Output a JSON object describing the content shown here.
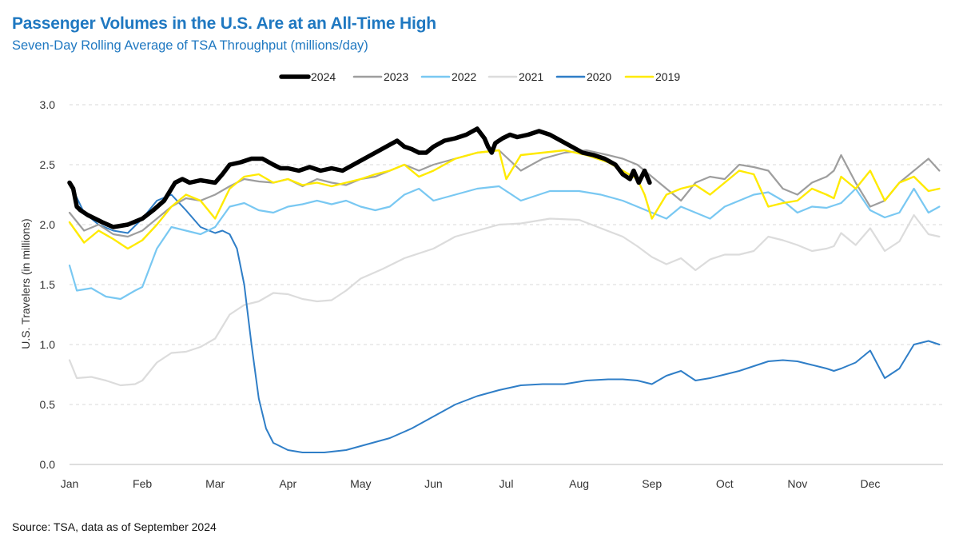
{
  "title": "Passenger Volumes in the U.S. Are at an All-Time High",
  "subtitle": "Seven-Day Rolling Average of TSA Throughput (millions/day)",
  "source": "Source: TSA, data as of September 2024",
  "colors": {
    "2024": "#000000",
    "2023": "#9e9e9e",
    "2022": "#79c8f2",
    "2021": "#dcdcdc",
    "2020": "#2f7ec7",
    "2019": "#ffea00"
  },
  "chart_data": {
    "type": "line",
    "ylabel": "U.S. Travelers (in millions)",
    "ylim": [
      0,
      3.0
    ],
    "yticks": [
      0.0,
      0.5,
      1.0,
      1.5,
      2.0,
      2.5,
      3.0
    ],
    "ytick_labels": [
      "0.0",
      "0.5",
      "1.0",
      "1.5",
      "2.0",
      "2.5",
      "3.0"
    ],
    "xlim": [
      0,
      12
    ],
    "xticks": [
      0,
      1,
      2,
      3,
      4,
      5,
      6,
      7,
      8,
      9,
      10,
      11
    ],
    "xtick_labels": [
      "Jan",
      "Feb",
      "Mar",
      "Apr",
      "May",
      "Jun",
      "Jul",
      "Aug",
      "Sep",
      "Oct",
      "Nov",
      "Dec"
    ],
    "grid": true,
    "legend_position": "top-center",
    "series": [
      {
        "name": "2021",
        "x": [
          0,
          0.1,
          0.3,
          0.5,
          0.7,
          0.9,
          1.0,
          1.2,
          1.4,
          1.6,
          1.8,
          2.0,
          2.2,
          2.4,
          2.6,
          2.8,
          3.0,
          3.2,
          3.4,
          3.6,
          3.8,
          4.0,
          4.3,
          4.6,
          5.0,
          5.3,
          5.6,
          5.9,
          6.2,
          6.6,
          7.0,
          7.3,
          7.6,
          7.8,
          8.0,
          8.2,
          8.4,
          8.6,
          8.8,
          9.0,
          9.2,
          9.4,
          9.6,
          9.8,
          10.0,
          10.2,
          10.4,
          10.5,
          10.6,
          10.8,
          11.0,
          11.2,
          11.4,
          11.6,
          11.8,
          11.95
        ],
        "values": [
          0.87,
          0.72,
          0.73,
          0.7,
          0.66,
          0.67,
          0.7,
          0.85,
          0.93,
          0.94,
          0.98,
          1.05,
          1.25,
          1.33,
          1.36,
          1.43,
          1.42,
          1.38,
          1.36,
          1.37,
          1.45,
          1.55,
          1.63,
          1.72,
          1.8,
          1.9,
          1.95,
          2.0,
          2.01,
          2.05,
          2.04,
          1.97,
          1.9,
          1.82,
          1.73,
          1.67,
          1.72,
          1.62,
          1.71,
          1.75,
          1.75,
          1.78,
          1.9,
          1.87,
          1.83,
          1.78,
          1.8,
          1.82,
          1.93,
          1.83,
          1.97,
          1.78,
          1.86,
          2.08,
          1.92,
          1.9
        ]
      },
      {
        "name": "2020",
        "x": [
          0,
          0.2,
          0.4,
          0.6,
          0.8,
          1.0,
          1.2,
          1.4,
          1.6,
          1.8,
          2.0,
          2.1,
          2.2,
          2.3,
          2.4,
          2.5,
          2.6,
          2.7,
          2.8,
          3.0,
          3.2,
          3.5,
          3.8,
          4.1,
          4.4,
          4.7,
          5.0,
          5.3,
          5.6,
          5.9,
          6.2,
          6.5,
          6.8,
          7.1,
          7.4,
          7.6,
          7.8,
          8.0,
          8.2,
          8.4,
          8.6,
          8.8,
          9.0,
          9.2,
          9.4,
          9.6,
          9.8,
          10.0,
          10.2,
          10.4,
          10.5,
          10.6,
          10.8,
          11.0,
          11.2,
          11.4,
          11.6,
          11.8,
          11.95
        ],
        "values": [
          2.35,
          2.1,
          2.0,
          1.95,
          1.93,
          2.05,
          2.2,
          2.25,
          2.12,
          1.98,
          1.93,
          1.95,
          1.92,
          1.8,
          1.5,
          1.0,
          0.55,
          0.3,
          0.18,
          0.12,
          0.1,
          0.1,
          0.12,
          0.17,
          0.22,
          0.3,
          0.4,
          0.5,
          0.57,
          0.62,
          0.66,
          0.67,
          0.67,
          0.7,
          0.71,
          0.71,
          0.7,
          0.67,
          0.74,
          0.78,
          0.7,
          0.72,
          0.75,
          0.78,
          0.82,
          0.86,
          0.87,
          0.86,
          0.83,
          0.8,
          0.78,
          0.8,
          0.85,
          0.95,
          0.72,
          0.8,
          1.0,
          1.03,
          1.0
        ]
      },
      {
        "name": "2022",
        "x": [
          0,
          0.1,
          0.3,
          0.5,
          0.7,
          0.9,
          1.0,
          1.2,
          1.4,
          1.6,
          1.8,
          2.0,
          2.2,
          2.4,
          2.6,
          2.8,
          3.0,
          3.2,
          3.4,
          3.6,
          3.8,
          4.0,
          4.2,
          4.4,
          4.6,
          4.8,
          5.0,
          5.3,
          5.6,
          5.9,
          6.2,
          6.6,
          7.0,
          7.3,
          7.6,
          7.8,
          8.0,
          8.2,
          8.4,
          8.6,
          8.8,
          9.0,
          9.2,
          9.4,
          9.6,
          9.8,
          10.0,
          10.2,
          10.4,
          10.6,
          10.8,
          11.0,
          11.2,
          11.4,
          11.6,
          11.8,
          11.95
        ],
        "values": [
          1.66,
          1.45,
          1.47,
          1.4,
          1.38,
          1.45,
          1.48,
          1.8,
          1.98,
          1.95,
          1.92,
          1.98,
          2.15,
          2.18,
          2.12,
          2.1,
          2.15,
          2.17,
          2.2,
          2.17,
          2.2,
          2.15,
          2.12,
          2.15,
          2.25,
          2.3,
          2.2,
          2.25,
          2.3,
          2.32,
          2.2,
          2.28,
          2.28,
          2.25,
          2.2,
          2.15,
          2.1,
          2.05,
          2.15,
          2.1,
          2.05,
          2.15,
          2.2,
          2.25,
          2.27,
          2.2,
          2.1,
          2.15,
          2.14,
          2.18,
          2.3,
          2.12,
          2.06,
          2.1,
          2.3,
          2.1,
          2.15
        ]
      },
      {
        "name": "2023",
        "x": [
          0,
          0.2,
          0.4,
          0.6,
          0.8,
          1.0,
          1.2,
          1.4,
          1.6,
          1.8,
          2.0,
          2.2,
          2.4,
          2.6,
          2.8,
          3.0,
          3.2,
          3.4,
          3.6,
          3.8,
          4.0,
          4.2,
          4.4,
          4.6,
          4.8,
          5.0,
          5.3,
          5.6,
          5.9,
          6.2,
          6.5,
          6.8,
          7.1,
          7.4,
          7.6,
          7.8,
          8.0,
          8.2,
          8.4,
          8.6,
          8.8,
          9.0,
          9.2,
          9.4,
          9.6,
          9.8,
          10.0,
          10.2,
          10.4,
          10.5,
          10.6,
          10.8,
          11.0,
          11.2,
          11.4,
          11.6,
          11.8,
          11.95
        ],
        "values": [
          2.1,
          1.95,
          2.0,
          1.92,
          1.9,
          1.95,
          2.05,
          2.15,
          2.22,
          2.2,
          2.25,
          2.32,
          2.38,
          2.36,
          2.35,
          2.38,
          2.32,
          2.38,
          2.35,
          2.33,
          2.38,
          2.4,
          2.45,
          2.5,
          2.45,
          2.5,
          2.55,
          2.6,
          2.62,
          2.45,
          2.55,
          2.6,
          2.62,
          2.58,
          2.55,
          2.5,
          2.4,
          2.3,
          2.2,
          2.35,
          2.4,
          2.38,
          2.5,
          2.48,
          2.45,
          2.3,
          2.25,
          2.35,
          2.4,
          2.45,
          2.58,
          2.35,
          2.15,
          2.2,
          2.35,
          2.45,
          2.55,
          2.45
        ]
      },
      {
        "name": "2019",
        "x": [
          0,
          0.2,
          0.4,
          0.6,
          0.8,
          1.0,
          1.2,
          1.4,
          1.6,
          1.8,
          2.0,
          2.2,
          2.4,
          2.6,
          2.8,
          3.0,
          3.2,
          3.4,
          3.6,
          3.8,
          4.0,
          4.2,
          4.4,
          4.6,
          4.8,
          5.0,
          5.3,
          5.6,
          5.9,
          6.0,
          6.2,
          6.5,
          6.8,
          7.1,
          7.4,
          7.6,
          7.8,
          7.9,
          8.0,
          8.2,
          8.4,
          8.6,
          8.8,
          9.0,
          9.2,
          9.4,
          9.6,
          9.8,
          10.0,
          10.2,
          10.4,
          10.5,
          10.6,
          10.8,
          11.0,
          11.2,
          11.4,
          11.6,
          11.8,
          11.95
        ],
        "values": [
          2.02,
          1.85,
          1.95,
          1.88,
          1.8,
          1.87,
          2.0,
          2.15,
          2.25,
          2.2,
          2.05,
          2.3,
          2.4,
          2.42,
          2.35,
          2.38,
          2.33,
          2.35,
          2.32,
          2.35,
          2.38,
          2.42,
          2.45,
          2.5,
          2.4,
          2.45,
          2.55,
          2.6,
          2.62,
          2.38,
          2.58,
          2.6,
          2.62,
          2.58,
          2.52,
          2.45,
          2.38,
          2.25,
          2.05,
          2.25,
          2.3,
          2.33,
          2.25,
          2.35,
          2.45,
          2.42,
          2.15,
          2.18,
          2.2,
          2.3,
          2.25,
          2.22,
          2.4,
          2.3,
          2.45,
          2.2,
          2.35,
          2.4,
          2.28,
          2.3
        ]
      },
      {
        "name": "2024",
        "x": [
          0,
          0.05,
          0.1,
          0.15,
          0.25,
          0.35,
          0.45,
          0.6,
          0.8,
          1.0,
          1.15,
          1.3,
          1.45,
          1.55,
          1.65,
          1.8,
          2.0,
          2.1,
          2.2,
          2.35,
          2.5,
          2.65,
          2.8,
          2.9,
          3.0,
          3.15,
          3.3,
          3.45,
          3.6,
          3.75,
          3.9,
          4.05,
          4.2,
          4.35,
          4.5,
          4.6,
          4.7,
          4.8,
          4.9,
          5.0,
          5.15,
          5.3,
          5.45,
          5.6,
          5.7,
          5.75,
          5.8,
          5.85,
          5.95,
          6.05,
          6.15,
          6.3,
          6.45,
          6.6,
          6.75,
          6.9,
          7.05,
          7.2,
          7.35,
          7.5,
          7.6,
          7.7,
          7.75,
          7.82,
          7.9,
          7.97
        ],
        "values": [
          2.35,
          2.3,
          2.15,
          2.12,
          2.08,
          2.05,
          2.02,
          1.98,
          2.0,
          2.05,
          2.12,
          2.2,
          2.35,
          2.38,
          2.35,
          2.37,
          2.35,
          2.42,
          2.5,
          2.52,
          2.55,
          2.55,
          2.5,
          2.47,
          2.47,
          2.45,
          2.48,
          2.45,
          2.47,
          2.45,
          2.5,
          2.55,
          2.6,
          2.65,
          2.7,
          2.65,
          2.63,
          2.6,
          2.6,
          2.65,
          2.7,
          2.72,
          2.75,
          2.8,
          2.72,
          2.65,
          2.6,
          2.68,
          2.72,
          2.75,
          2.73,
          2.75,
          2.78,
          2.75,
          2.7,
          2.65,
          2.6,
          2.58,
          2.55,
          2.5,
          2.42,
          2.38,
          2.45,
          2.35,
          2.45,
          2.35
        ]
      }
    ]
  }
}
